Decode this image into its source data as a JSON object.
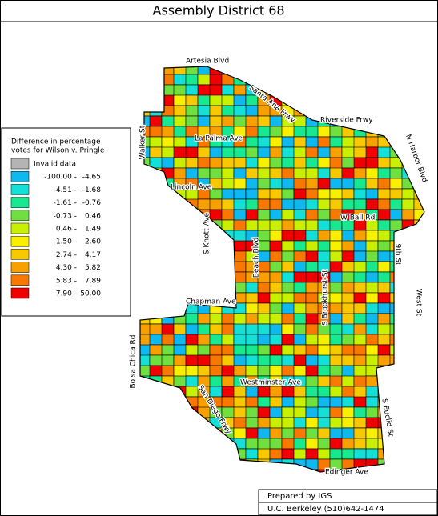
{
  "title": "Assembly District 68",
  "legend": {
    "title": [
      "Difference in percentage",
      "votes for Wilson v. Pringle"
    ],
    "items": [
      {
        "from": "Invalid data",
        "color": "#b4b4b4"
      },
      {
        "from": "-100.00 -",
        "to": "-4.65",
        "color": "#10b8f0"
      },
      {
        "from": "-4.51 -",
        "to": "-1.68",
        "color": "#14e0d8"
      },
      {
        "from": "-1.61 -",
        "to": "-0.76",
        "color": "#18e890"
      },
      {
        "from": "-0.73 -",
        "to": "0.46",
        "color": "#70e040"
      },
      {
        "from": "0.46 -",
        "to": "1.49",
        "color": "#c8f000"
      },
      {
        "from": "1.50 -",
        "to": "2.60",
        "color": "#f8f000"
      },
      {
        "from": "2.74 -",
        "to": "4.17",
        "color": "#f8c800"
      },
      {
        "from": "4.30 -",
        "to": "5.82",
        "color": "#f8a000"
      },
      {
        "from": "5.83 -",
        "to": "7.89",
        "color": "#f87800"
      },
      {
        "from": "7.90 -",
        "to": "50.00",
        "color": "#f00000"
      }
    ]
  },
  "streets": [
    "Artesia Blvd",
    "Santa Ana Frwy",
    "Riverside Frwy",
    "N Harbor Blvd",
    "Walker St",
    "La Palma Ave",
    "Lincoln Ave",
    "W Ball Rd",
    "S Knott Ave",
    "Beach Blvd",
    "S Brookhurst St",
    "9th St",
    "West St",
    "Chapman Ave",
    "Bolsa Chica Rd",
    "San Diego Frwy",
    "Westminster Ave",
    "S Euclid St",
    "Edinger Ave"
  ],
  "credit": [
    "Prepared by IGS",
    "U.C. Berkeley  (510)642-1474"
  ]
}
